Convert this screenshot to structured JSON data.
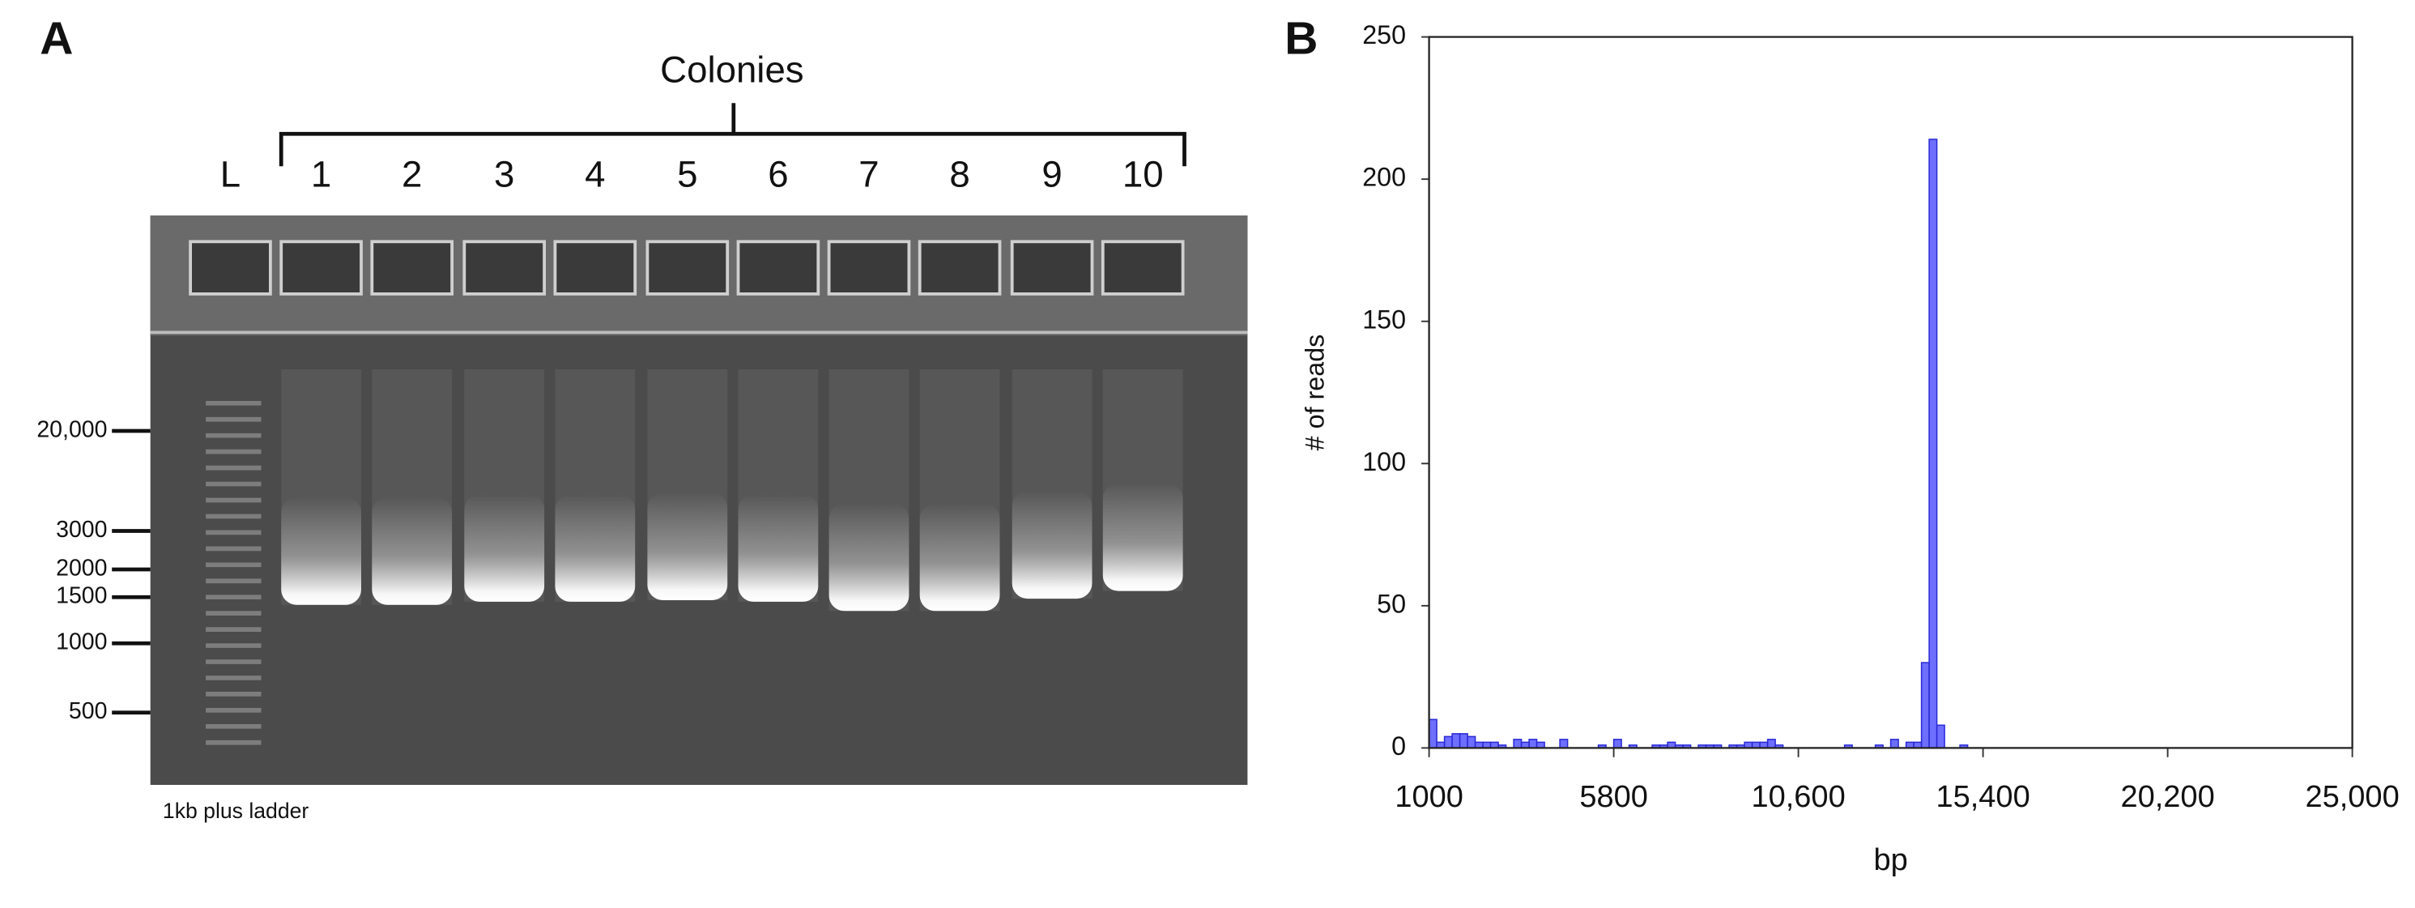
{
  "panel_a": {
    "label": "A",
    "title": "Colonies",
    "lanes": [
      "L",
      "1",
      "2",
      "3",
      "4",
      "5",
      "6",
      "7",
      "8",
      "9",
      "10"
    ],
    "ladder_labels": [
      "20,000",
      "3000",
      "2000",
      "1500",
      "1000",
      "500"
    ],
    "caption": "1kb plus ladder"
  },
  "chart_data": {
    "type": "histogram",
    "label": "B",
    "xlabel": "bp",
    "ylabel": "# of reads",
    "color": "#6e6eff",
    "edge_color": "#2a2ad6",
    "bins": [
      1000,
      1200,
      1400,
      1600,
      1800,
      2000,
      2200,
      2400,
      2600,
      2800,
      3000,
      3200,
      3400,
      3600,
      3800,
      4000,
      4200,
      4400,
      4600,
      4800,
      5000,
      5200,
      5400,
      5600,
      5800,
      6000,
      6200,
      6400,
      6600,
      6800,
      7000,
      7200,
      7400,
      7600,
      7800,
      8000,
      8200,
      8400,
      8600,
      8800,
      9000,
      9200,
      9400,
      9600,
      9800,
      10000,
      10200,
      10400,
      10600,
      10800,
      11000,
      11200,
      11400,
      11600,
      11800,
      12000,
      12200,
      12400,
      12600,
      12800,
      13000,
      13200,
      13400,
      13600,
      13800,
      14000,
      14200,
      14400,
      14600,
      14800,
      15000,
      15200,
      15400,
      15600
    ],
    "values": [
      10,
      2,
      4,
      5,
      5,
      4,
      2,
      2,
      2,
      1,
      0,
      3,
      2,
      3,
      2,
      0,
      0,
      3,
      0,
      0,
      0,
      0,
      1,
      0,
      3,
      0,
      1,
      0,
      0,
      1,
      1,
      2,
      1,
      1,
      0,
      1,
      1,
      1,
      0,
      1,
      1,
      2,
      2,
      2,
      3,
      1,
      0,
      0,
      0,
      0,
      0,
      0,
      0,
      0,
      1,
      0,
      0,
      0,
      1,
      0,
      3,
      0,
      2,
      2,
      30,
      214,
      8,
      0,
      0,
      1,
      0,
      0,
      0
    ],
    "xlim": [
      1000,
      25000
    ],
    "xticks": [
      1000,
      5800,
      {
        "value": 10600,
        "label": "10,600"
      },
      {
        "value": 15400,
        "label": "15,400"
      },
      {
        "value": 20200,
        "label": "20,200"
      },
      {
        "value": 25000,
        "label": "25,000"
      }
    ],
    "ylim": [
      0,
      250
    ],
    "yticks": [
      0,
      50,
      100,
      150,
      200,
      250
    ]
  }
}
